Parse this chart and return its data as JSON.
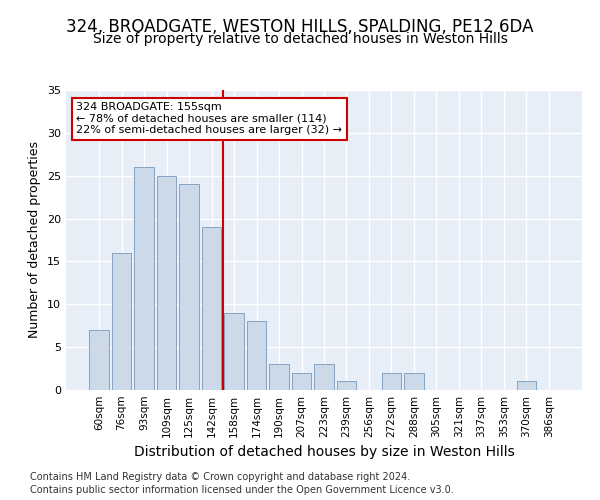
{
  "title1": "324, BROADGATE, WESTON HILLS, SPALDING, PE12 6DA",
  "title2": "Size of property relative to detached houses in Weston Hills",
  "xlabel": "Distribution of detached houses by size in Weston Hills",
  "ylabel": "Number of detached properties",
  "footer1": "Contains HM Land Registry data © Crown copyright and database right 2024.",
  "footer2": "Contains public sector information licensed under the Open Government Licence v3.0.",
  "categories": [
    "60sqm",
    "76sqm",
    "93sqm",
    "109sqm",
    "125sqm",
    "142sqm",
    "158sqm",
    "174sqm",
    "190sqm",
    "207sqm",
    "223sqm",
    "239sqm",
    "256sqm",
    "272sqm",
    "288sqm",
    "305sqm",
    "321sqm",
    "337sqm",
    "353sqm",
    "370sqm",
    "386sqm"
  ],
  "values": [
    7,
    16,
    26,
    25,
    24,
    19,
    9,
    8,
    3,
    2,
    3,
    1,
    0,
    2,
    2,
    0,
    0,
    0,
    0,
    1,
    0
  ],
  "bar_color": "#ccd9e8",
  "bar_edge_color": "#7799bb",
  "ref_line_x": 5.5,
  "ref_line_color": "#cc0000",
  "annotation_line1": "324 BROADGATE: 155sqm",
  "annotation_line2": "← 78% of detached houses are smaller (114)",
  "annotation_line3": "22% of semi-detached houses are larger (32) →",
  "annotation_box_color": "white",
  "annotation_box_edge": "#cc0000",
  "ylim": [
    0,
    35
  ],
  "yticks": [
    0,
    5,
    10,
    15,
    20,
    25,
    30,
    35
  ],
  "bg_color": "#e8eef8",
  "grid_color": "white",
  "title_fontsize": 12,
  "subtitle_fontsize": 10,
  "bar_width": 0.85,
  "xlabel_fontsize": 10,
  "ylabel_fontsize": 9,
  "footer_fontsize": 7
}
